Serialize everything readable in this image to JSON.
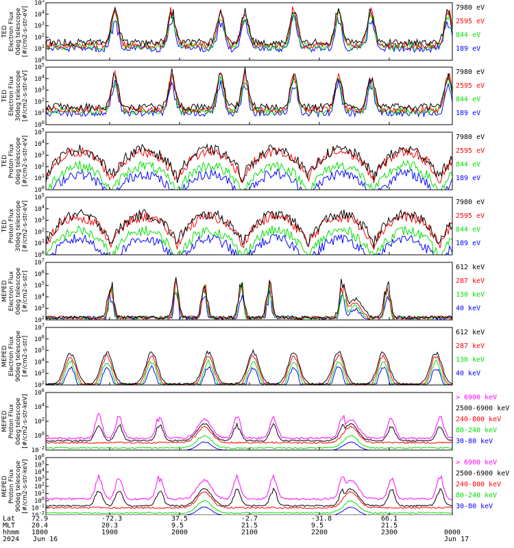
{
  "chart_data": [
    {
      "type": "line",
      "ylabel_lines": [
        "TED",
        "Electron Flux",
        "0deg telescope",
        "[#/cm2-s-str-eV]"
      ],
      "ylim": [
        1,
        100000
      ],
      "ytick_exponents": [
        0,
        1,
        2,
        3,
        4,
        5
      ],
      "series": [
        {
          "name": "7980 eV",
          "color": "#000000"
        },
        {
          "name": "2595 eV",
          "color": "#ff0000"
        },
        {
          "name": "844 eV",
          "color": "#00e000"
        },
        {
          "name": "189 eV",
          "color": "#0000ff"
        }
      ]
    },
    {
      "type": "line",
      "ylabel_lines": [
        "TED",
        "Electron Flux",
        "30deg telescope",
        "[#/cm2-s-str-eV]"
      ],
      "ylim": [
        1,
        100000
      ],
      "ytick_exponents": [
        0,
        1,
        2,
        3,
        4,
        5
      ],
      "series": [
        {
          "name": "7980 eV",
          "color": "#000000"
        },
        {
          "name": "2595 eV",
          "color": "#ff0000"
        },
        {
          "name": "844 eV",
          "color": "#00e000"
        },
        {
          "name": "189 eV",
          "color": "#0000ff"
        }
      ]
    },
    {
      "type": "line",
      "ylabel_lines": [
        "TED",
        "Proton Flux",
        "0deg telescope",
        "[#/cm2-s-str-eV]"
      ],
      "ylim": [
        1,
        100000
      ],
      "ytick_exponents": [
        0,
        1,
        2,
        3,
        4,
        5
      ],
      "series": [
        {
          "name": "7980 eV",
          "color": "#000000"
        },
        {
          "name": "2595 eV",
          "color": "#ff0000"
        },
        {
          "name": "844 eV",
          "color": "#00e000"
        },
        {
          "name": "189 eV",
          "color": "#0000ff"
        }
      ]
    },
    {
      "type": "line",
      "ylabel_lines": [
        "TED",
        "Proton Flux",
        "30deg telescope",
        "[#/cm2-s-str-eV]"
      ],
      "ylim": [
        1,
        100000
      ],
      "ytick_exponents": [
        0,
        1,
        2,
        3,
        4,
        5
      ],
      "series": [
        {
          "name": "7980 eV",
          "color": "#000000"
        },
        {
          "name": "2595 eV",
          "color": "#ff0000"
        },
        {
          "name": "844 eV",
          "color": "#00e000"
        },
        {
          "name": "189 eV",
          "color": "#0000ff"
        }
      ]
    },
    {
      "type": "line",
      "ylabel_lines": [
        "MEPED",
        "Electron Flux",
        "0deg telescope",
        "[#/cm2-s-str]"
      ],
      "ylim": [
        100,
        10000000
      ],
      "ytick_exponents": [
        2,
        3,
        4,
        5,
        6,
        7
      ],
      "series": [
        {
          "name": "612 keV",
          "color": "#000000"
        },
        {
          "name": "287 keV",
          "color": "#ff0000"
        },
        {
          "name": "130 keV",
          "color": "#00e000"
        },
        {
          "name": "40 keV",
          "color": "#0000ff"
        }
      ]
    },
    {
      "type": "line",
      "ylabel_lines": [
        "MEPED",
        "Electron Flux",
        "90deg telescope",
        "[#/cm2-s-str]"
      ],
      "ylim": [
        100,
        10000000
      ],
      "ytick_exponents": [
        2,
        3,
        4,
        5,
        6,
        7
      ],
      "series": [
        {
          "name": "612 keV",
          "color": "#000000"
        },
        {
          "name": "287 keV",
          "color": "#ff0000"
        },
        {
          "name": "130 keV",
          "color": "#00e000"
        },
        {
          "name": "40 keV",
          "color": "#0000ff"
        }
      ]
    },
    {
      "type": "line",
      "ylabel_lines": [
        "MEPED",
        "Proton Flux",
        "0deg telescope",
        "[#/cm2-s-str-keV]"
      ],
      "ylim": [
        0.01,
        1000000
      ],
      "ytick_exponents": [
        -2,
        0,
        2,
        4,
        6
      ],
      "series": [
        {
          "name": "> 6900 keV",
          "color": "#ff00ff"
        },
        {
          "name": "2500-6900 keV",
          "color": "#000000"
        },
        {
          "name": "240-800 keV",
          "color": "#ff0000"
        },
        {
          "name": "80-240 keV",
          "color": "#00e000"
        },
        {
          "name": "30-80 keV",
          "color": "#0000ff"
        }
      ]
    },
    {
      "type": "line",
      "ylabel_lines": [
        "MEPED",
        "Proton Flux",
        "90deg telescope",
        "[#/cm2-s-str-keV]"
      ],
      "ylim": [
        0.01,
        1000000
      ],
      "ytick_exponents": [
        -2,
        -1,
        0,
        1,
        2,
        3,
        4,
        5,
        6
      ],
      "series": [
        {
          "name": "> 6900 keV",
          "color": "#ff00ff"
        },
        {
          "name": "2500-6900 keV",
          "color": "#000000"
        },
        {
          "name": "240-800 keV",
          "color": "#ff0000"
        },
        {
          "name": "80-240 keV",
          "color": "#00e000"
        },
        {
          "name": "30-80 keV",
          "color": "#0000ff"
        }
      ]
    }
  ],
  "x_axis": {
    "row_labels": [
      "Lat",
      "MLT",
      "hhmm",
      "2024"
    ],
    "ticks": [
      {
        "lat": "72.9",
        "mlt": "20.4",
        "hhmm": "1800",
        "date": "Jun 16"
      },
      {
        "lat": "-72.3",
        "mlt": "20.3",
        "hhmm": "1900",
        "date": ""
      },
      {
        "lat": "37.5",
        "mlt": "9.5",
        "hhmm": "2000",
        "date": ""
      },
      {
        "lat": "-2.7",
        "mlt": "21.5",
        "hhmm": "2100",
        "date": ""
      },
      {
        "lat": "-31.8",
        "mlt": "9.5",
        "hhmm": "2200",
        "date": ""
      },
      {
        "lat": "66.1",
        "mlt": "21.5",
        "hhmm": "2300",
        "date": ""
      },
      {
        "lat": "",
        "mlt": "",
        "hhmm": "0000",
        "date": "Jun 17"
      }
    ]
  }
}
